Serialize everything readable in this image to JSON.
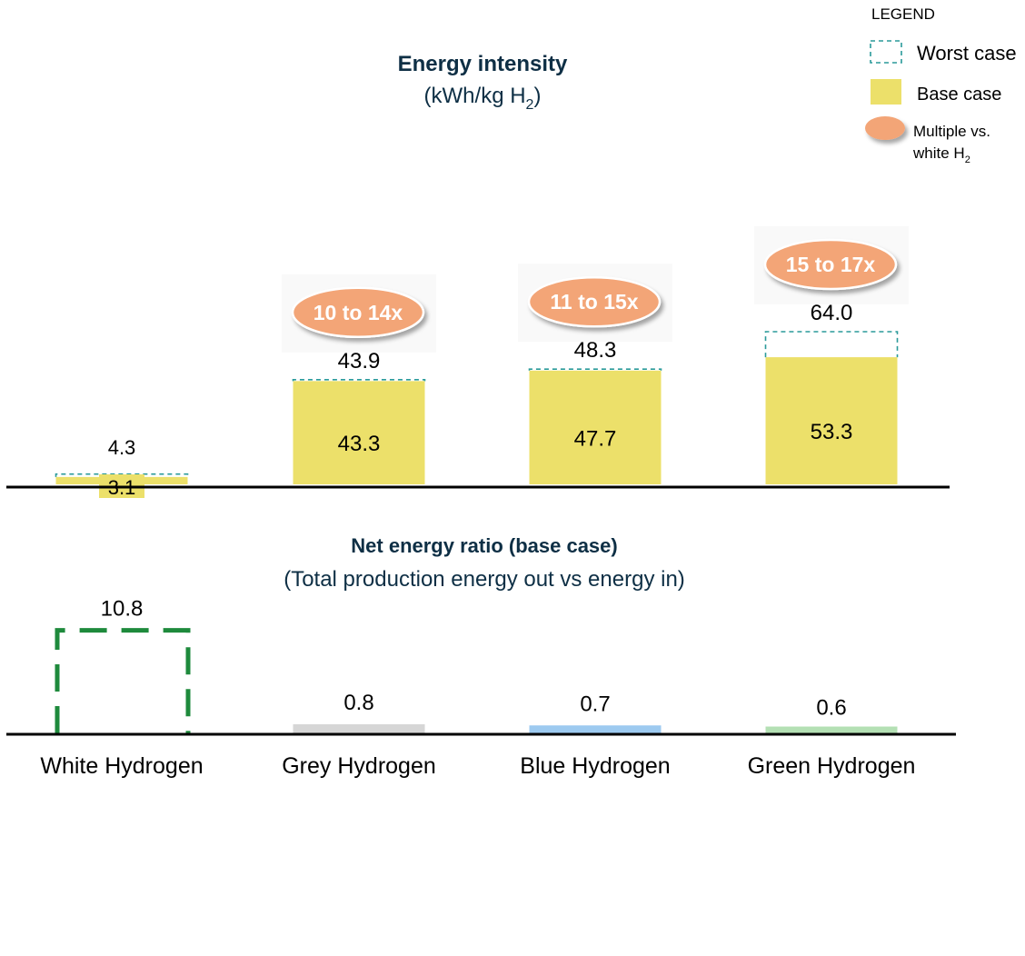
{
  "colors": {
    "base": "#ece06a",
    "worst_stroke": "#2a9a9a",
    "multiple_fill": "#f3a577",
    "multiple_text": "#ffffff",
    "white_ratio_stroke": "#1e8a3c",
    "grey": "#d6d6d6",
    "blue": "#9dcaf0",
    "green": "#b4e0b4",
    "axis": "#000000",
    "title": "#0e2f45"
  },
  "legend": {
    "title": "LEGEND",
    "worst": "Worst case",
    "base": "Base case",
    "multiple_line1": "Multiple vs.",
    "multiple_line2": "white H",
    "multiple_sub": "2"
  },
  "top_title": {
    "line1": "Energy intensity",
    "line2_pre": "(kWh/kg H",
    "line2_sub": "2",
    "line2_post": ")"
  },
  "bottom_title": {
    "line1": "Net energy ratio (base case)",
    "line2": "(Total production energy out vs energy in)"
  },
  "chart_data": [
    {
      "type": "bar",
      "title": "Energy intensity",
      "ylabel": "kWh/kg H2",
      "categories": [
        "White Hydrogen",
        "Grey Hydrogen",
        "Blue Hydrogen",
        "Green Hydrogen"
      ],
      "series": [
        {
          "name": "Base case",
          "values": [
            3.1,
            43.3,
            47.7,
            53.3
          ],
          "labels": [
            "3.1",
            "43.3",
            "47.7",
            "53.3"
          ]
        },
        {
          "name": "Worst case",
          "values": [
            4.3,
            43.9,
            48.3,
            64.0
          ],
          "labels": [
            "4.3",
            "43.9",
            "48.3",
            "64.0"
          ]
        }
      ],
      "multiples": [
        "",
        "10 to 14x",
        "11 to 15x",
        "15 to 17x"
      ]
    },
    {
      "type": "bar",
      "title": "Net energy ratio (base case)",
      "categories": [
        "White Hydrogen",
        "Grey Hydrogen",
        "Blue Hydrogen",
        "Green Hydrogen"
      ],
      "values": [
        10.8,
        0.8,
        0.7,
        0.6
      ],
      "labels": [
        "10.8",
        "0.8",
        "0.7",
        "0.6"
      ]
    }
  ]
}
